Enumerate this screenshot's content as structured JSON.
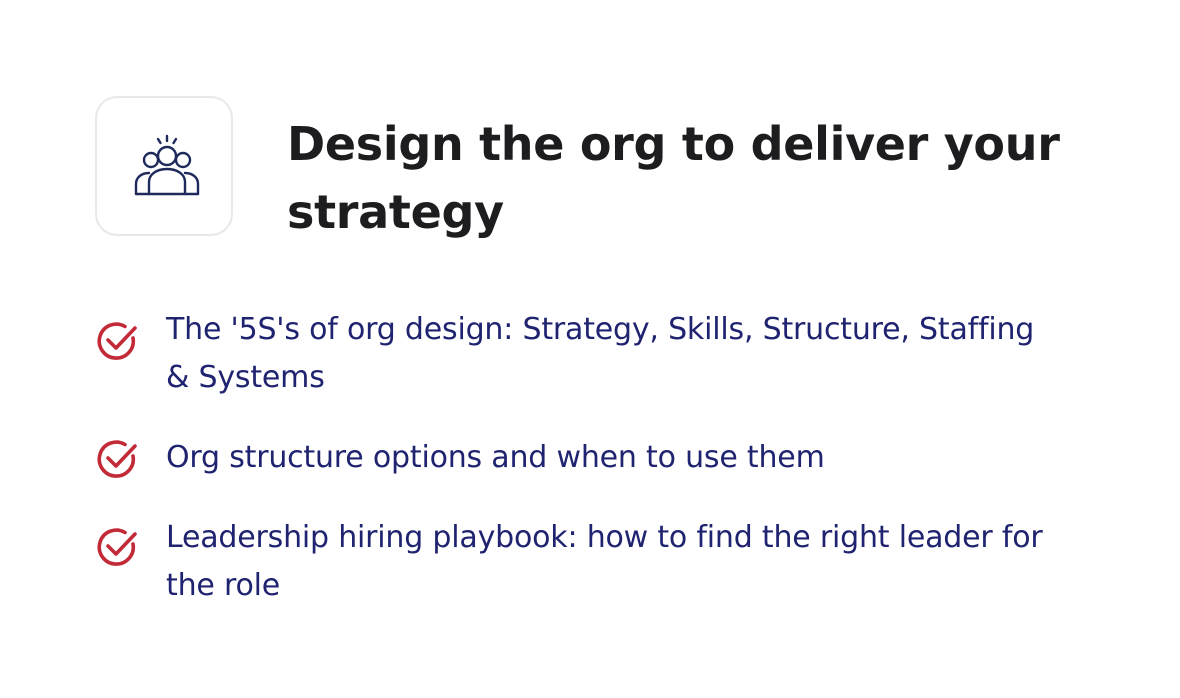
{
  "card": {
    "icon": "team-group-icon",
    "title": "Design the org to deliver your strategy"
  },
  "bullets": [
    {
      "icon": "check-circle-icon",
      "text": "The '5S's of org design: Strategy, Skills, Structure, Staffing & Systems"
    },
    {
      "icon": "check-circle-icon",
      "text": "Org structure options and when to use them"
    },
    {
      "icon": "check-circle-icon",
      "text": "Leadership hiring playbook: how to find the right leader for the role"
    }
  ],
  "colors": {
    "title": "#1d1d1f",
    "bullet_text": "#1f2370",
    "check": "#c12a36",
    "icon_stroke": "#1f2a5c",
    "card_border": "#e8e8ea"
  }
}
